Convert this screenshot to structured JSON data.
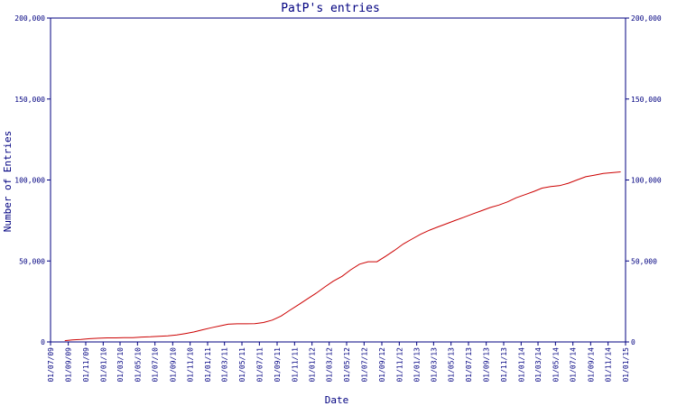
{
  "chart_data": {
    "type": "line",
    "title": "PatP's entries",
    "xlabel": "Date",
    "ylabel": "Number of Entries",
    "ylim": [
      0,
      200000
    ],
    "xlim": [
      "2009-07-01",
      "2015-01-01"
    ],
    "yticks": [
      {
        "value": 0,
        "label": "0"
      },
      {
        "value": 50000,
        "label": "50,000"
      },
      {
        "value": 100000,
        "label": "100,000"
      },
      {
        "value": 150000,
        "label": "150,000"
      },
      {
        "value": 200000,
        "label": "200,000"
      }
    ],
    "xticks": [
      {
        "value": "2009-07-01",
        "label": "01/07/09"
      },
      {
        "value": "2009-09-01",
        "label": "01/09/09"
      },
      {
        "value": "2009-11-01",
        "label": "01/11/09"
      },
      {
        "value": "2010-01-01",
        "label": "01/01/10"
      },
      {
        "value": "2010-03-01",
        "label": "01/03/10"
      },
      {
        "value": "2010-05-01",
        "label": "01/05/10"
      },
      {
        "value": "2010-07-01",
        "label": "01/07/10"
      },
      {
        "value": "2010-09-01",
        "label": "01/09/10"
      },
      {
        "value": "2010-11-01",
        "label": "01/11/10"
      },
      {
        "value": "2011-01-01",
        "label": "01/01/11"
      },
      {
        "value": "2011-03-01",
        "label": "01/03/11"
      },
      {
        "value": "2011-05-01",
        "label": "01/05/11"
      },
      {
        "value": "2011-07-01",
        "label": "01/07/11"
      },
      {
        "value": "2011-09-01",
        "label": "01/09/11"
      },
      {
        "value": "2011-11-01",
        "label": "01/11/11"
      },
      {
        "value": "2012-01-01",
        "label": "01/01/12"
      },
      {
        "value": "2012-03-01",
        "label": "01/03/12"
      },
      {
        "value": "2012-05-01",
        "label": "01/05/12"
      },
      {
        "value": "2012-07-01",
        "label": "01/07/12"
      },
      {
        "value": "2012-09-01",
        "label": "01/09/12"
      },
      {
        "value": "2012-11-01",
        "label": "01/11/12"
      },
      {
        "value": "2013-01-01",
        "label": "01/01/13"
      },
      {
        "value": "2013-03-01",
        "label": "01/03/13"
      },
      {
        "value": "2013-05-01",
        "label": "01/05/13"
      },
      {
        "value": "2013-07-01",
        "label": "01/07/13"
      },
      {
        "value": "2013-09-01",
        "label": "01/09/13"
      },
      {
        "value": "2013-11-01",
        "label": "01/11/13"
      },
      {
        "value": "2014-01-01",
        "label": "01/01/14"
      },
      {
        "value": "2014-03-01",
        "label": "01/03/14"
      },
      {
        "value": "2014-05-01",
        "label": "01/05/14"
      },
      {
        "value": "2014-07-01",
        "label": "01/07/14"
      },
      {
        "value": "2014-09-01",
        "label": "01/09/14"
      },
      {
        "value": "2014-11-01",
        "label": "01/11/14"
      },
      {
        "value": "2015-01-01",
        "label": "01/01/15"
      }
    ],
    "grid": false,
    "right_axis": true,
    "series_color": "#cc0000",
    "axis_color": "#000080",
    "series": [
      {
        "x": [
          "2009-08-20",
          "2009-09-15",
          "2009-10-15",
          "2009-11-15",
          "2009-12-15",
          "2010-01-15",
          "2010-02-15",
          "2010-03-15",
          "2010-04-15",
          "2010-05-15",
          "2010-06-15",
          "2010-07-15",
          "2010-08-15",
          "2010-09-15",
          "2010-10-15",
          "2010-11-15",
          "2010-12-15",
          "2011-01-15",
          "2011-02-15",
          "2011-03-15",
          "2011-04-15",
          "2011-05-15",
          "2011-06-15",
          "2011-07-15",
          "2011-08-15",
          "2011-09-15",
          "2011-10-15",
          "2011-11-15",
          "2011-12-15",
          "2012-01-15",
          "2012-02-15",
          "2012-03-15",
          "2012-04-15",
          "2012-05-15",
          "2012-06-15",
          "2012-07-15",
          "2012-08-15",
          "2012-09-15",
          "2012-10-15",
          "2012-11-15",
          "2012-12-15",
          "2013-01-15",
          "2013-02-15",
          "2013-03-15",
          "2013-04-15",
          "2013-05-15",
          "2013-06-15",
          "2013-07-15",
          "2013-08-15",
          "2013-09-15",
          "2013-10-15",
          "2013-11-15",
          "2013-12-15",
          "2014-01-15",
          "2014-02-15",
          "2014-03-15",
          "2014-04-15",
          "2014-05-15",
          "2014-06-15",
          "2014-07-15",
          "2014-08-15",
          "2014-09-15",
          "2014-10-15",
          "2014-11-15",
          "2014-12-15"
        ],
        "values": [
          800,
          1200,
          1500,
          2000,
          2300,
          2500,
          2500,
          2600,
          2700,
          3000,
          3200,
          3500,
          3800,
          4300,
          5200,
          6200,
          7500,
          8800,
          10000,
          11000,
          11200,
          11200,
          11300,
          12000,
          13500,
          16000,
          19500,
          23000,
          26500,
          30000,
          34000,
          37500,
          40500,
          44500,
          48000,
          49500,
          49500,
          53000,
          56500,
          60500,
          63500,
          66500,
          69000,
          71000,
          73000,
          75000,
          77000,
          79000,
          81000,
          83000,
          84500,
          86500,
          89000,
          91000,
          93000,
          95000,
          96000,
          96500,
          98000,
          100000,
          102000,
          103000,
          104000,
          104500,
          105000
        ]
      }
    ]
  }
}
